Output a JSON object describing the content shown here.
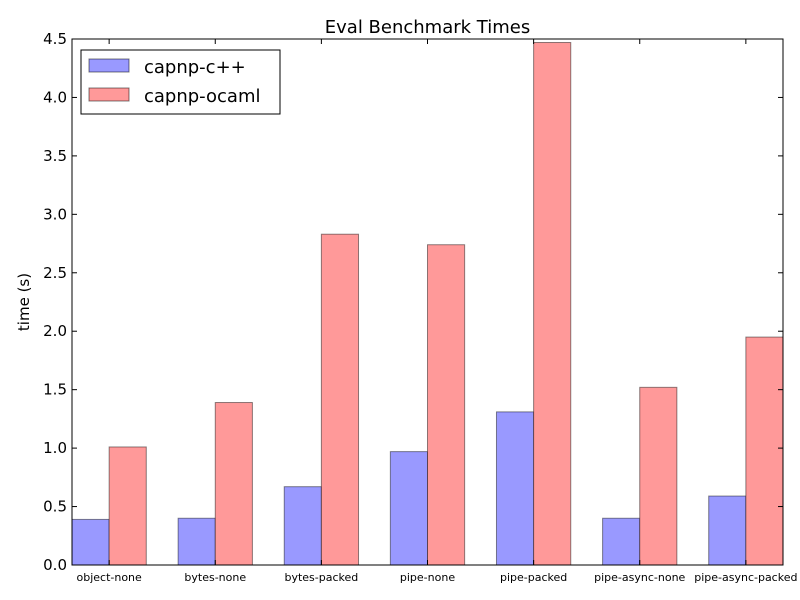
{
  "chart_data": {
    "type": "bar",
    "title": "Eval Benchmark Times",
    "xlabel": "",
    "ylabel": "time (s)",
    "ylim": [
      0,
      4.5
    ],
    "yticks": [
      "0.0",
      "0.5",
      "1.0",
      "1.5",
      "2.0",
      "2.5",
      "3.0",
      "3.5",
      "4.0",
      "4.5"
    ],
    "categories": [
      "object-none",
      "bytes-none",
      "bytes-packed",
      "pipe-none",
      "pipe-packed",
      "pipe-async-none",
      "pipe-async-packed"
    ],
    "series": [
      {
        "name": "capnp-c++",
        "color": "#9999ff",
        "values": [
          0.39,
          0.4,
          0.67,
          0.97,
          1.31,
          0.4,
          0.59
        ]
      },
      {
        "name": "capnp-ocaml",
        "color": "#ff9999",
        "values": [
          1.01,
          1.39,
          2.83,
          2.74,
          4.47,
          1.52,
          1.95
        ]
      }
    ],
    "legend_position": "top-left",
    "grid": false
  }
}
